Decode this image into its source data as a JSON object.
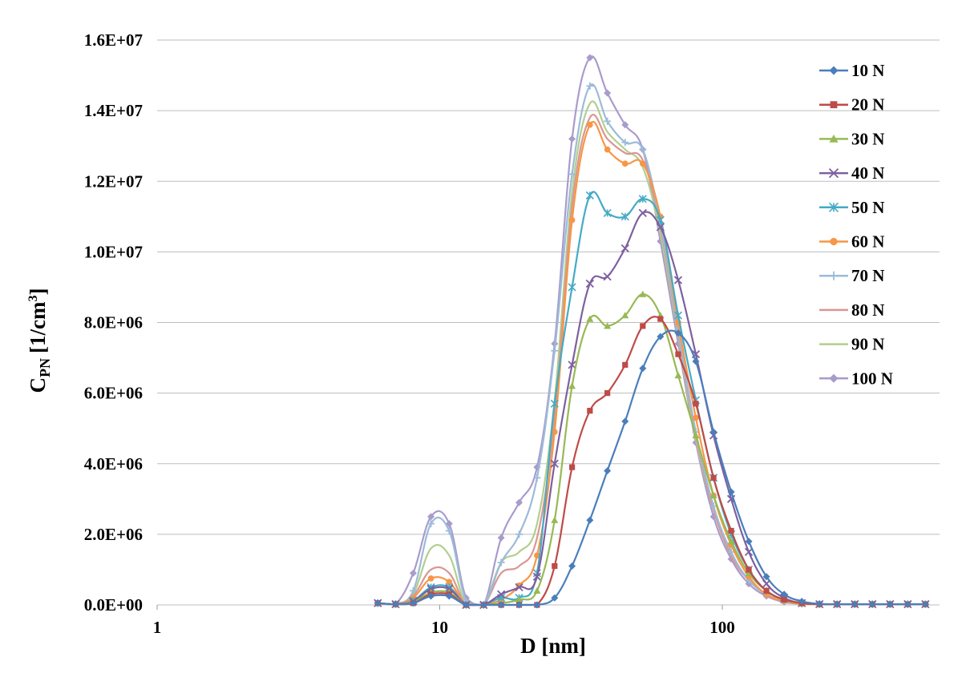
{
  "chart_data": {
    "type": "line",
    "title": "",
    "xlabel": "D [nm]",
    "ylabel": "C",
    "ylabel_sub": "PN",
    "ylabel_unit": "[1/cm",
    "ylabel_sup": "3",
    "ylabel_close": "]",
    "xscale": "log",
    "xlim": [
      1,
      600
    ],
    "ylim": [
      0,
      16000000
    ],
    "grid": true,
    "legend": "top-right",
    "x_tick_labels": [
      "1",
      "10",
      "100"
    ],
    "y_tick_labels": [
      "0.0E+00",
      "2.0E+06",
      "4.0E+06",
      "6.0E+06",
      "8.0E+06",
      "1.0E+07",
      "1.2E+07",
      "1.4E+07",
      "1.6E+07"
    ],
    "x": [
      6.04,
      6.98,
      8.06,
      9.31,
      10.8,
      12.4,
      14.3,
      16.5,
      19.1,
      22.1,
      25.5,
      29.4,
      34.0,
      39.2,
      45.3,
      52.3,
      60.4,
      69.8,
      80.6,
      93.1,
      107.5,
      124.1,
      143.3,
      165.5,
      191.1,
      220.7,
      254.8,
      294.3,
      339.8,
      392.4,
      453.2,
      523.3
    ],
    "series": [
      {
        "name": "10 N",
        "color": "#4a7ebb",
        "marker": "diamond",
        "values": [
          50000,
          20000,
          50000,
          250000,
          250000,
          0,
          0,
          0,
          0,
          0,
          200000,
          1100000,
          2400000,
          3800000,
          5200000,
          6700000,
          7600000,
          7700000,
          6900000,
          4900000,
          3200000,
          1800000,
          800000,
          300000,
          100000,
          30000,
          20000,
          20000,
          20000,
          20000,
          20000,
          20000
        ]
      },
      {
        "name": "20 N",
        "color": "#be4b48",
        "marker": "square",
        "values": [
          50000,
          20000,
          50000,
          300000,
          300000,
          0,
          0,
          0,
          0,
          0,
          1100000,
          3900000,
          5500000,
          6000000,
          6800000,
          7900000,
          8100000,
          7100000,
          5700000,
          3600000,
          2100000,
          1000000,
          400000,
          150000,
          50000,
          20000,
          20000,
          20000,
          20000,
          20000,
          20000,
          20000
        ]
      },
      {
        "name": "30 N",
        "color": "#98b954",
        "marker": "triangle",
        "values": [
          50000,
          20000,
          80000,
          350000,
          350000,
          0,
          0,
          50000,
          150000,
          400000,
          2400000,
          6200000,
          8100000,
          7900000,
          8200000,
          8800000,
          8200000,
          6500000,
          4800000,
          3100000,
          1800000,
          900000,
          400000,
          150000,
          50000,
          20000,
          20000,
          20000,
          20000,
          20000,
          20000,
          20000
        ]
      },
      {
        "name": "40 N",
        "color": "#7d60a0",
        "marker": "x",
        "values": [
          50000,
          20000,
          100000,
          450000,
          450000,
          0,
          0,
          300000,
          500000,
          800000,
          4000000,
          6800000,
          9100000,
          9300000,
          10100000,
          11100000,
          10700000,
          9200000,
          7100000,
          4800000,
          3000000,
          1500000,
          600000,
          200000,
          50000,
          20000,
          20000,
          20000,
          20000,
          20000,
          20000,
          20000
        ]
      },
      {
        "name": "50 N",
        "color": "#46aac5",
        "marker": "asterisk",
        "values": [
          50000,
          20000,
          120000,
          500000,
          500000,
          0,
          0,
          200000,
          200000,
          900000,
          5700000,
          9000000,
          11600000,
          11100000,
          11000000,
          11500000,
          10900000,
          8200000,
          5800000,
          3600000,
          2000000,
          1000000,
          400000,
          150000,
          50000,
          20000,
          20000,
          20000,
          20000,
          20000,
          20000,
          20000
        ]
      },
      {
        "name": "60 N",
        "color": "#f79646",
        "marker": "circle",
        "values": [
          50000,
          20000,
          200000,
          750000,
          650000,
          0,
          0,
          150000,
          550000,
          1400000,
          4900000,
          10900000,
          13600000,
          12900000,
          12500000,
          12500000,
          11000000,
          8000000,
          5300000,
          3100000,
          1700000,
          800000,
          300000,
          100000,
          30000,
          20000,
          20000,
          20000,
          20000,
          20000,
          20000,
          20000
        ]
      },
      {
        "name": "70 N",
        "color": "#9bbbd9",
        "marker": "plus",
        "values": [
          50000,
          30000,
          400000,
          2300000,
          2100000,
          100000,
          0,
          1200000,
          2000000,
          3600000,
          7200000,
          12200000,
          14700000,
          13700000,
          13100000,
          12900000,
          10800000,
          7800000,
          4900000,
          2800000,
          1500000,
          700000,
          300000,
          100000,
          30000,
          20000,
          20000,
          20000,
          20000,
          20000,
          20000,
          20000
        ]
      },
      {
        "name": "80 N",
        "color": "#d99694",
        "marker": "line",
        "values": [
          50000,
          20000,
          250000,
          1000000,
          900000,
          0,
          0,
          900000,
          1100000,
          1900000,
          5300000,
          11300000,
          13800000,
          13200000,
          12800000,
          12600000,
          10700000,
          7700000,
          4800000,
          2700000,
          1400000,
          700000,
          300000,
          100000,
          30000,
          20000,
          20000,
          20000,
          20000,
          20000,
          20000,
          20000
        ]
      },
      {
        "name": "90 N",
        "color": "#b2cf8e",
        "marker": "line",
        "values": [
          50000,
          20000,
          300000,
          1600000,
          1400000,
          0,
          0,
          1200000,
          1500000,
          2300000,
          5800000,
          11700000,
          14200000,
          13400000,
          12900000,
          12400000,
          10500000,
          7600000,
          4700000,
          2700000,
          1400000,
          700000,
          300000,
          100000,
          30000,
          20000,
          20000,
          20000,
          20000,
          20000,
          20000,
          20000
        ]
      },
      {
        "name": "100 N",
        "color": "#a99bcc",
        "marker": "diamond",
        "values": [
          50000,
          30000,
          900000,
          2500000,
          2300000,
          200000,
          0,
          1900000,
          2900000,
          3900000,
          7400000,
          13200000,
          15500000,
          14500000,
          13600000,
          12900000,
          10300000,
          7400000,
          4600000,
          2500000,
          1300000,
          600000,
          250000,
          80000,
          30000,
          20000,
          20000,
          20000,
          20000,
          20000,
          20000,
          20000
        ]
      }
    ]
  }
}
